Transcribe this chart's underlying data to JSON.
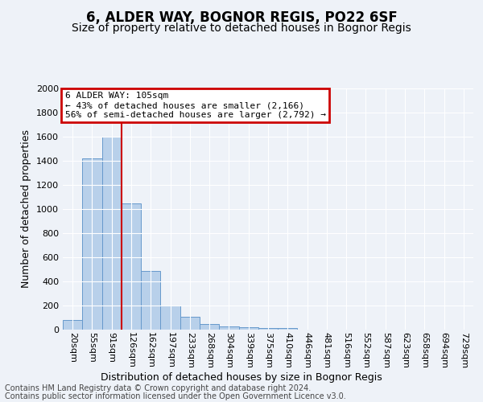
{
  "title": "6, ALDER WAY, BOGNOR REGIS, PO22 6SF",
  "subtitle": "Size of property relative to detached houses in Bognor Regis",
  "xlabel": "Distribution of detached houses by size in Bognor Regis",
  "ylabel": "Number of detached properties",
  "footnote1": "Contains HM Land Registry data © Crown copyright and database right 2024.",
  "footnote2": "Contains public sector information licensed under the Open Government Licence v3.0.",
  "bar_labels": [
    "20sqm",
    "55sqm",
    "91sqm",
    "126sqm",
    "162sqm",
    "197sqm",
    "233sqm",
    "268sqm",
    "304sqm",
    "339sqm",
    "375sqm",
    "410sqm",
    "446sqm",
    "481sqm",
    "516sqm",
    "552sqm",
    "587sqm",
    "623sqm",
    "658sqm",
    "694sqm",
    "729sqm"
  ],
  "bar_values": [
    80,
    1420,
    1600,
    1050,
    490,
    200,
    105,
    50,
    30,
    20,
    15,
    15,
    0,
    0,
    0,
    0,
    0,
    0,
    0,
    0,
    0
  ],
  "bar_color": "#b8d0ea",
  "bar_edge_color": "#6699cc",
  "red_line_index": 2,
  "ylim": [
    0,
    2000
  ],
  "annotation_title": "6 ALDER WAY: 105sqm",
  "annotation_line1": "← 43% of detached houses are smaller (2,166)",
  "annotation_line2": "56% of semi-detached houses are larger (2,792) →",
  "annotation_box_color": "#cc0000",
  "bg_color": "#eef2f8",
  "grid_color": "#ffffff",
  "title_fontsize": 12,
  "subtitle_fontsize": 10,
  "axis_label_fontsize": 9,
  "tick_fontsize": 8,
  "annotation_fontsize": 8,
  "footnote_fontsize": 7
}
